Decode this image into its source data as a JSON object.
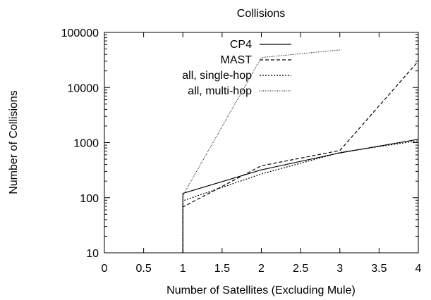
{
  "chart_data": {
    "type": "line",
    "title": "Collisions",
    "xlabel": "Number of Satellites (Excluding Mule)",
    "ylabel": "Number of Collisions",
    "xlim": [
      0,
      4
    ],
    "ylim": [
      10,
      100000
    ],
    "yscale": "log",
    "grid": false,
    "legend_position": "top-right",
    "x_ticks": [
      0,
      0.5,
      1,
      1.5,
      2,
      2.5,
      3,
      3.5,
      4
    ],
    "x_tick_labels": [
      "0",
      "0.5",
      "1",
      "1.5",
      "2",
      "2.5",
      "3",
      "3.5",
      "4"
    ],
    "y_ticks": [
      10,
      100,
      1000,
      10000,
      100000
    ],
    "y_tick_labels": [
      "10",
      "100",
      "1000",
      "10000",
      "100000"
    ],
    "series": [
      {
        "name": "CP4",
        "style": "solid",
        "color": "#000000",
        "x": [
          1,
          1,
          2,
          3,
          4
        ],
        "y": [
          10,
          120,
          320,
          650,
          1150
        ]
      },
      {
        "name": "MAST",
        "style": "dashed",
        "color": "#000000",
        "x": [
          1,
          1,
          2,
          3,
          4
        ],
        "y": [
          10,
          68,
          380,
          720,
          30000
        ]
      },
      {
        "name": "all, single-hop",
        "style": "dotted",
        "color": "#000000",
        "x": [
          1,
          1,
          2,
          3,
          4
        ],
        "y": [
          10,
          88,
          270,
          660,
          1080
        ]
      },
      {
        "name": "all, multi-hop",
        "style": "fine-dotted",
        "color": "#000000",
        "x": [
          1,
          1,
          2,
          3
        ],
        "y": [
          10,
          110,
          35000,
          48000
        ]
      }
    ]
  }
}
